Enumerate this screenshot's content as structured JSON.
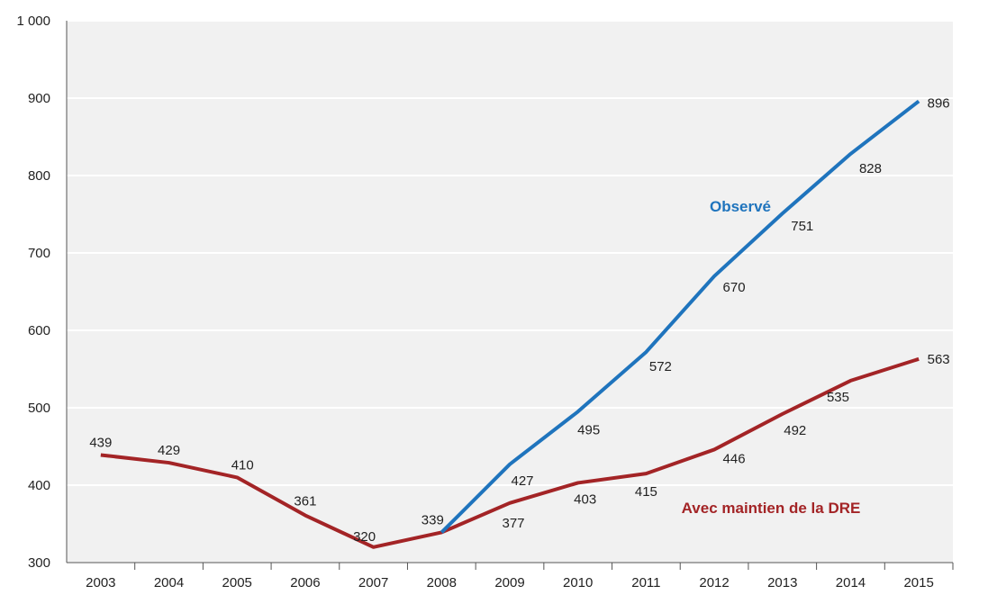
{
  "chart_data": {
    "type": "line",
    "title": "",
    "xlabel": "",
    "ylabel": "",
    "categories": [
      "2003",
      "2004",
      "2005",
      "2006",
      "2007",
      "2008",
      "2009",
      "2010",
      "2011",
      "2012",
      "2013",
      "2014",
      "2015"
    ],
    "ylim": [
      300,
      1000
    ],
    "yticks": [
      300,
      400,
      500,
      600,
      700,
      800,
      900,
      1000
    ],
    "ytick_labels": [
      "300",
      "400",
      "500",
      "600",
      "700",
      "800",
      "900",
      "1 000"
    ],
    "grid": "horizontal",
    "background": "#f1f1f1",
    "series": [
      {
        "name": "Avec maintien de la DRE",
        "color": "#a32426",
        "values": [
          439,
          429,
          410,
          361,
          320,
          339,
          377,
          403,
          415,
          446,
          492,
          535,
          563
        ],
        "labels": [
          "439",
          "429",
          "410",
          "361",
          "320",
          "339",
          "377",
          "403",
          "415",
          "446",
          "492",
          "535",
          "563"
        ]
      },
      {
        "name": "Observé",
        "color": "#1f74bd",
        "values": [
          null,
          null,
          null,
          null,
          null,
          339,
          427,
          495,
          572,
          670,
          751,
          828,
          896
        ],
        "labels": [
          "",
          "",
          "",
          "",
          "",
          "",
          "427",
          "495",
          "572",
          "670",
          "751",
          "828",
          "896"
        ]
      }
    ]
  }
}
